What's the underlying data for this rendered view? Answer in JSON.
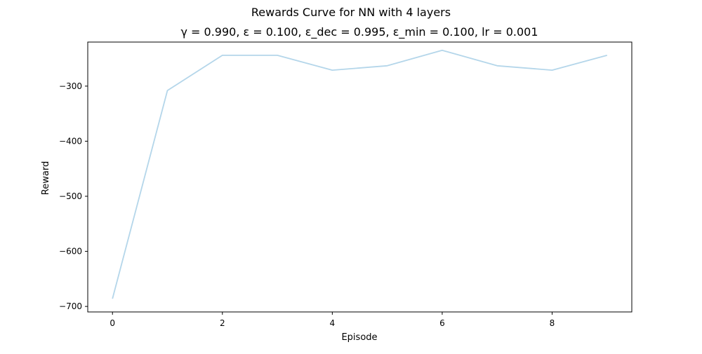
{
  "figure": {
    "suptitle": "Rewards Curve for NN with 4 layers",
    "title": "γ = 0.990, ε = 0.100, ε_dec = 0.995, ε_min = 0.100, lr = 0.001"
  },
  "chart_data": {
    "type": "line",
    "title": "Rewards Curve for NN with 4 layers",
    "subtitle": "γ = 0.990, ε = 0.100, ε_dec = 0.995, ε_min = 0.100, lr = 0.001",
    "xlabel": "Episode",
    "ylabel": "Reward",
    "x": [
      0,
      1,
      2,
      3,
      4,
      5,
      6,
      7,
      8,
      9
    ],
    "series": [
      {
        "values": [
          -686,
          -308,
          -244,
          -244,
          -271,
          -263,
          -235,
          -263,
          -271,
          -244
        ],
        "color": "#b4d6ea"
      }
    ],
    "xlim": [
      -0.45,
      9.45
    ],
    "ylim": [
      -710,
      -220
    ],
    "xticks": [
      0,
      2,
      4,
      6,
      8
    ],
    "yticks": [
      -700,
      -600,
      -500,
      -400,
      -300
    ],
    "ytick_labels": [
      "−700",
      "−600",
      "−500",
      "−400",
      "−300"
    ],
    "grid": false,
    "legend": "none"
  }
}
